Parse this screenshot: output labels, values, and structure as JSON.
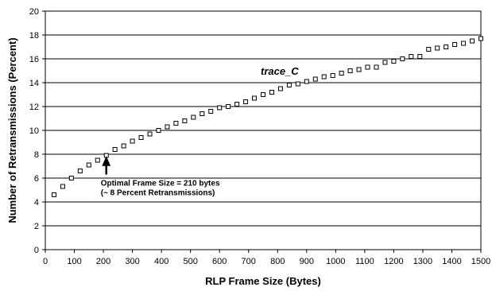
{
  "chart_data": {
    "type": "scatter",
    "xlabel": "RLP Frame Size (Bytes)",
    "ylabel": "Number of Retransmissions  (Percent)",
    "xlim": [
      0,
      1500
    ],
    "ylim": [
      0,
      20
    ],
    "xticks": [
      0,
      100,
      200,
      300,
      400,
      500,
      600,
      700,
      800,
      900,
      1000,
      1100,
      1200,
      1300,
      1400,
      1500
    ],
    "yticks": [
      0,
      2,
      4,
      6,
      8,
      10,
      12,
      14,
      16,
      18,
      20
    ],
    "grid": "horizontal",
    "series": [
      {
        "name": "trace_C",
        "marker": "hollow-square",
        "x": [
          30,
          60,
          90,
          120,
          150,
          180,
          210,
          240,
          270,
          300,
          330,
          360,
          390,
          420,
          450,
          480,
          510,
          540,
          570,
          600,
          630,
          660,
          690,
          720,
          750,
          780,
          810,
          840,
          870,
          900,
          930,
          960,
          990,
          1020,
          1050,
          1080,
          1110,
          1140,
          1170,
          1200,
          1230,
          1260,
          1290,
          1320,
          1350,
          1380,
          1410,
          1440,
          1470,
          1500
        ],
        "y": [
          4.6,
          5.3,
          6.0,
          6.6,
          7.1,
          7.5,
          7.9,
          8.4,
          8.7,
          9.1,
          9.4,
          9.7,
          10.0,
          10.3,
          10.6,
          10.8,
          11.1,
          11.4,
          11.6,
          11.9,
          12.0,
          12.2,
          12.4,
          12.7,
          13.0,
          13.2,
          13.5,
          13.8,
          13.9,
          14.1,
          14.3,
          14.5,
          14.6,
          14.8,
          15.0,
          15.1,
          15.3,
          15.3,
          15.7,
          15.8,
          16.0,
          16.2,
          16.2,
          16.8,
          16.9,
          17.0,
          17.2,
          17.3,
          17.5,
          17.7
        ]
      }
    ],
    "annotation": {
      "line1": "Optimal Frame Size = 210 bytes",
      "line2": "(~ 8 Percent Retransmissions)",
      "x": 210,
      "y": 7.9
    }
  }
}
